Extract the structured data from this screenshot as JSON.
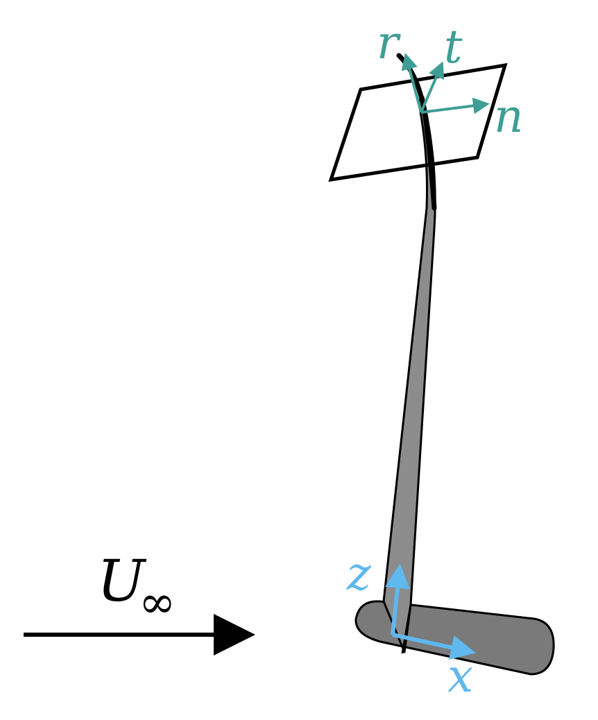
{
  "diagram": {
    "freestream": {
      "symbol": "U",
      "subscript": "∞",
      "color": "#000000"
    },
    "global_axes": {
      "x_label": "x",
      "z_label": "z",
      "color": "#5fb8ee"
    },
    "local_axes": {
      "r_label": "r",
      "t_label": "t",
      "n_label": "n",
      "color": "#3e9e95"
    },
    "colors": {
      "outline": "#000000",
      "fin_fill": "#8c8c8c",
      "base_fill": "#7a7a7a"
    }
  }
}
